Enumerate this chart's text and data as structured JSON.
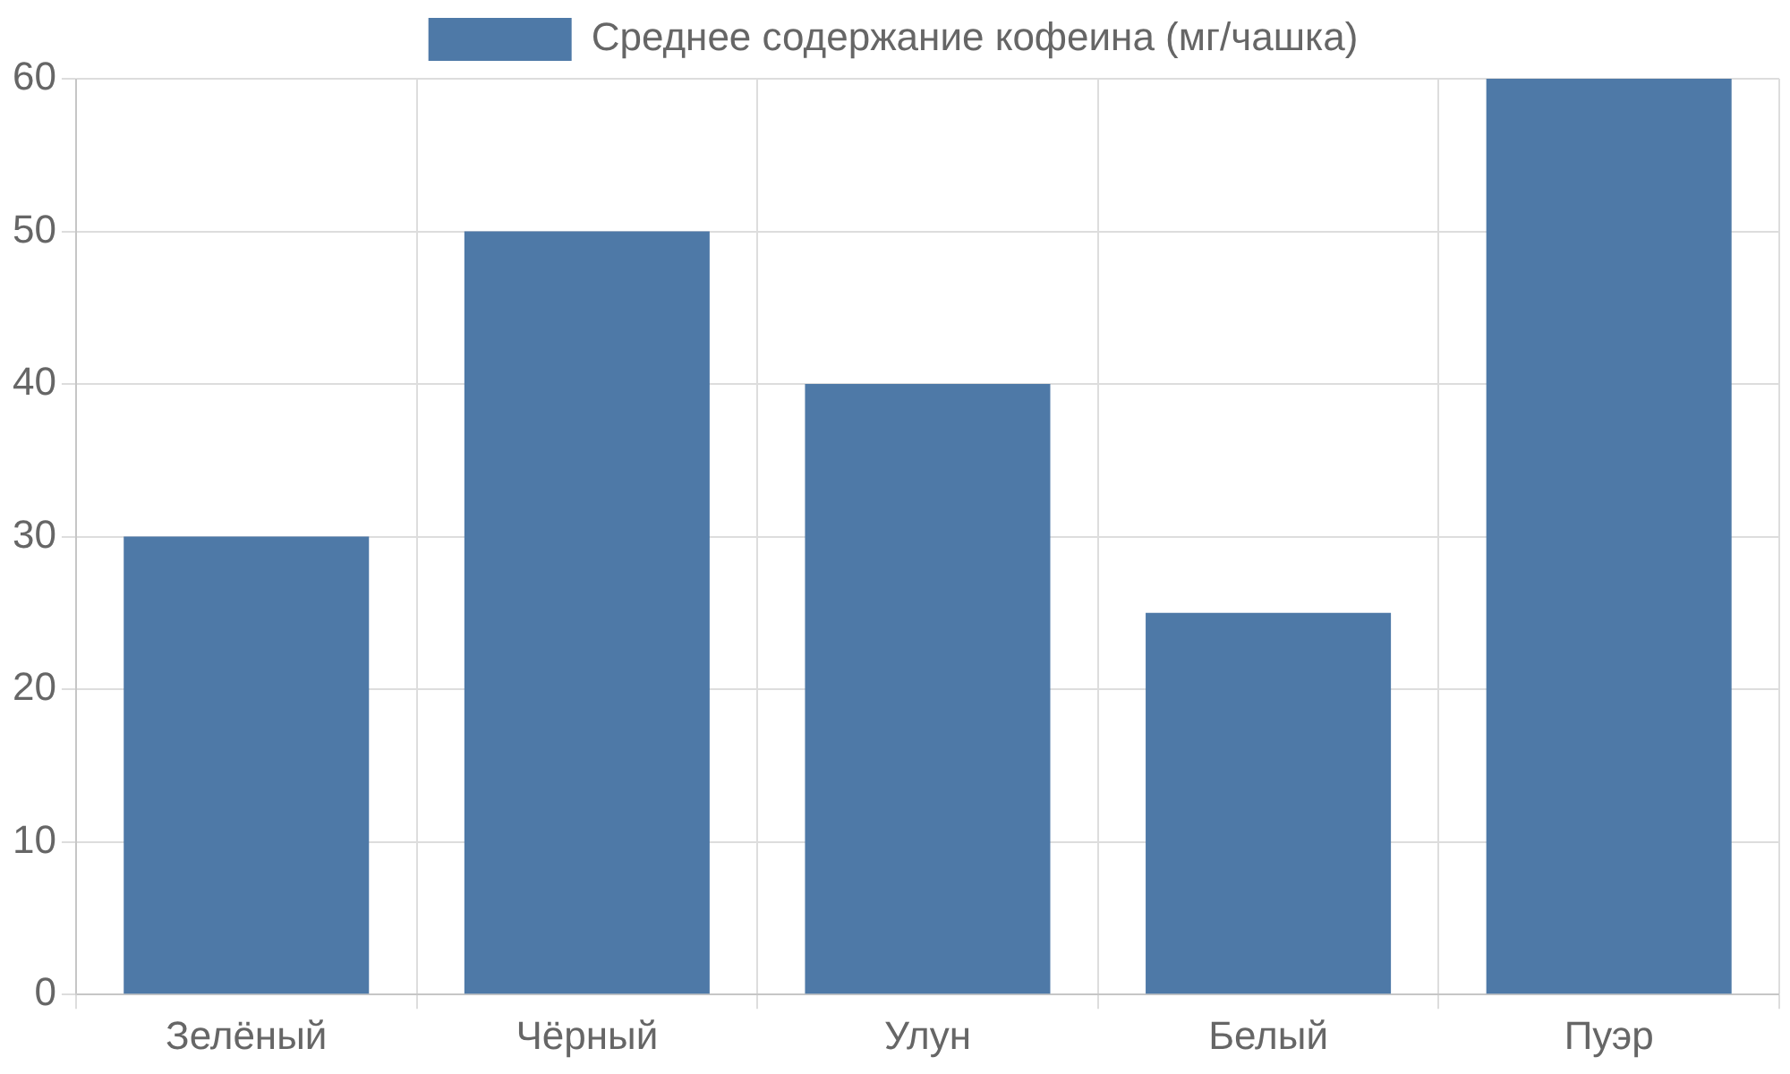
{
  "chart_data": {
    "type": "bar",
    "categories": [
      "Зелёный",
      "Чёрный",
      "Улун",
      "Белый",
      "Пуэр"
    ],
    "series": [
      {
        "name": "Среднее содержание кофеина (мг/чашка)",
        "color": "#4e79a7",
        "values": [
          30,
          50,
          40,
          25,
          60
        ]
      }
    ],
    "ylim": [
      0,
      60
    ],
    "yticks": [
      0,
      10,
      20,
      30,
      40,
      50,
      60
    ],
    "grid": true,
    "legend": "top"
  }
}
